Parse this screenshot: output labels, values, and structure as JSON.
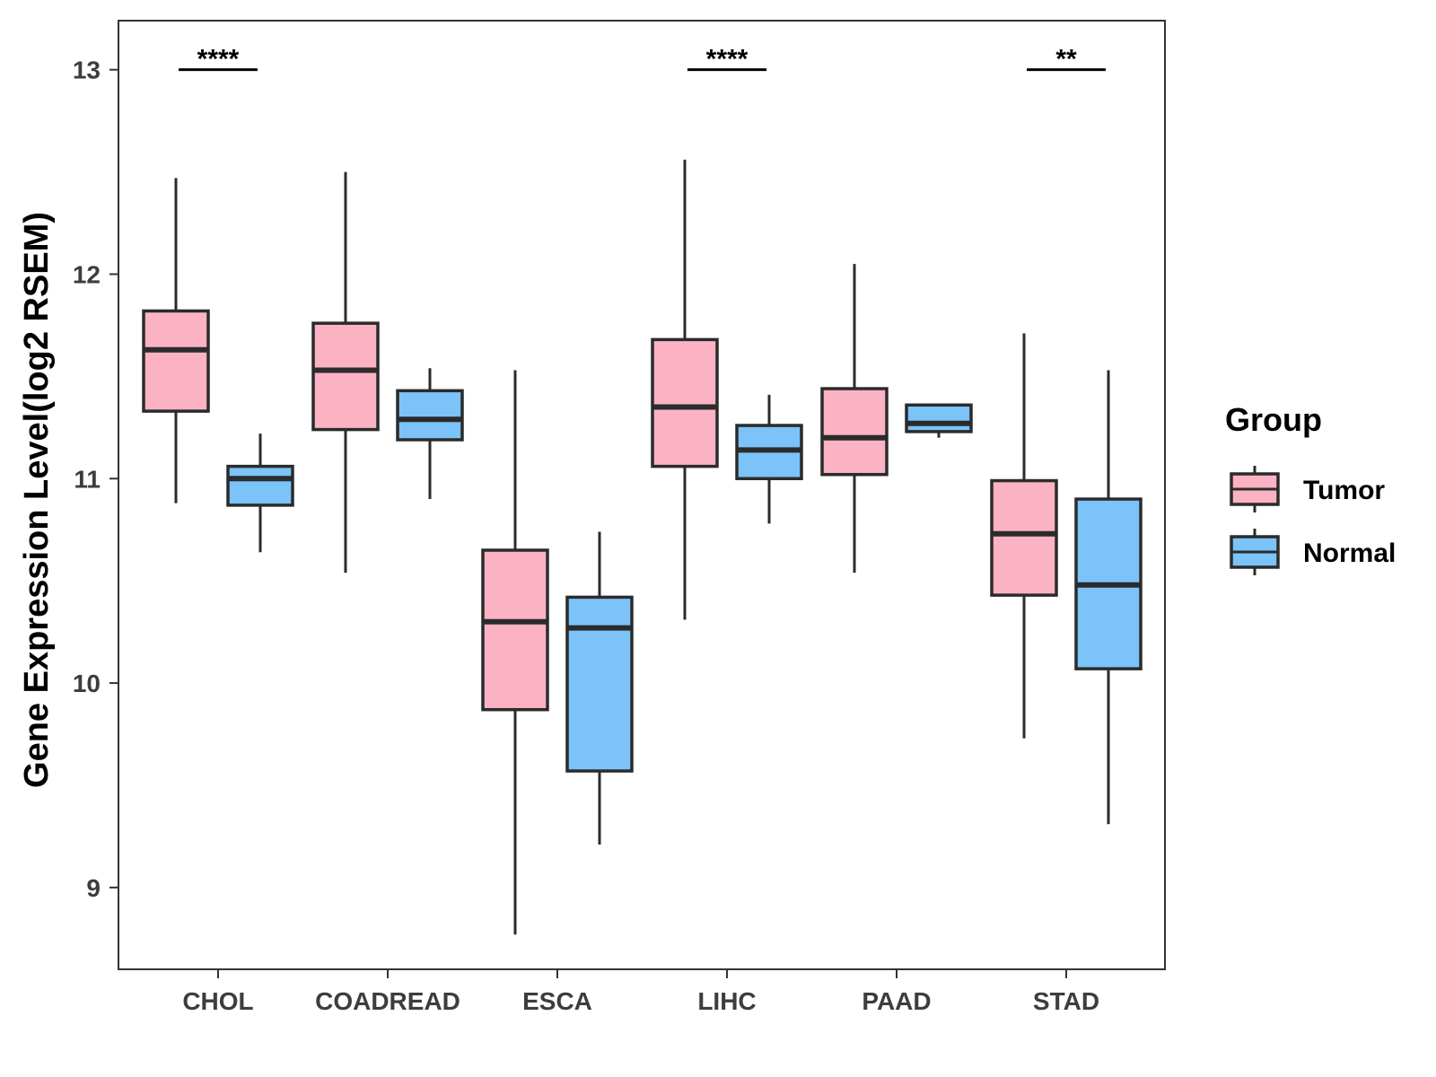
{
  "chart_data": {
    "type": "boxplot",
    "title": "",
    "xlabel": "",
    "ylabel": "Gene Expression Level(log2 RSEM)",
    "ylim": [
      8.6,
      13.24
    ],
    "yticks": [
      9,
      10,
      11,
      12,
      13
    ],
    "categories": [
      "CHOL",
      "COADREAD",
      "ESCA",
      "LIHC",
      "PAAD",
      "STAD"
    ],
    "legend": {
      "title": "Group",
      "position": "right",
      "items": [
        {
          "label": "Tumor",
          "color": "#fbb3c4"
        },
        {
          "label": "Normal",
          "color": "#7bc3f8"
        }
      ]
    },
    "colors": {
      "box_stroke": "#2b2b2b",
      "axis": "#333333",
      "tick_text": "#3d3d3d"
    },
    "series": [
      {
        "name": "Tumor",
        "color": "#fbb3c4",
        "boxes": [
          {
            "min": 10.88,
            "q1": 11.33,
            "median": 11.63,
            "q3": 11.82,
            "max": 12.47
          },
          {
            "min": 10.54,
            "q1": 11.24,
            "median": 11.53,
            "q3": 11.76,
            "max": 12.5
          },
          {
            "min": 8.77,
            "q1": 9.87,
            "median": 10.3,
            "q3": 10.65,
            "max": 11.53
          },
          {
            "min": 10.31,
            "q1": 11.06,
            "median": 11.35,
            "q3": 11.68,
            "max": 12.56
          },
          {
            "min": 10.54,
            "q1": 11.02,
            "median": 11.2,
            "q3": 11.44,
            "max": 12.05
          },
          {
            "min": 9.73,
            "q1": 10.43,
            "median": 10.73,
            "q3": 10.99,
            "max": 11.71
          }
        ]
      },
      {
        "name": "Normal",
        "color": "#7bc3f8",
        "boxes": [
          {
            "min": 10.64,
            "q1": 10.87,
            "median": 11.0,
            "q3": 11.06,
            "max": 11.22
          },
          {
            "min": 10.9,
            "q1": 11.19,
            "median": 11.29,
            "q3": 11.43,
            "max": 11.54
          },
          {
            "min": 9.21,
            "q1": 9.57,
            "median": 10.27,
            "q3": 10.42,
            "max": 10.74
          },
          {
            "min": 10.78,
            "q1": 11.0,
            "median": 11.14,
            "q3": 11.26,
            "max": 11.41
          },
          {
            "min": 11.2,
            "q1": 11.23,
            "median": 11.27,
            "q3": 11.36,
            "max": 11.36
          },
          {
            "min": 9.31,
            "q1": 10.07,
            "median": 10.48,
            "q3": 10.9,
            "max": 11.53
          }
        ]
      }
    ],
    "significance": [
      {
        "category": "CHOL",
        "label": "****",
        "y": 13.0
      },
      {
        "category": "LIHC",
        "label": "****",
        "y": 13.0
      },
      {
        "category": "STAD",
        "label": "**",
        "y": 13.0
      }
    ]
  }
}
